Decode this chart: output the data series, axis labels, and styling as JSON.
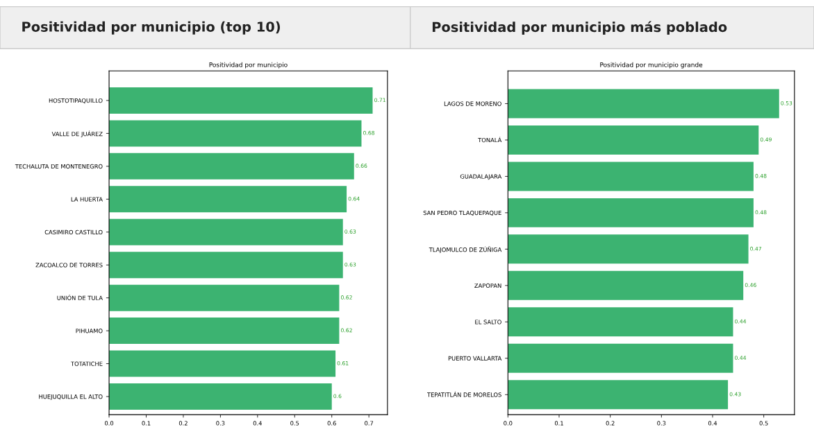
{
  "chart_data": [
    {
      "type": "bar",
      "orientation": "horizontal",
      "title": "Positividad por municipio (top 10)",
      "subtitle": "Positividad por municipio",
      "categories": [
        "HOSTOTIPAQUILLO",
        "VALLE DE JUÁREZ",
        "TECHALUTA DE MONTENEGRO",
        "LA HUERTA",
        "CASIMIRO CASTILLO",
        "ZACOALCO DE TORRES",
        "UNIÓN DE TULA",
        "PIHUAMO",
        "TOTATICHE",
        "HUEJUQUILLA EL ALTO"
      ],
      "values": [
        0.71,
        0.68,
        0.66,
        0.64,
        0.63,
        0.63,
        0.62,
        0.62,
        0.61,
        0.6
      ],
      "color": "#3cb371",
      "data_labels": true,
      "xlim": [
        0,
        0.75
      ],
      "xticks": [
        {
          "value": 0,
          "label": "0.0"
        },
        0.1,
        0.2,
        0.3,
        0.4,
        0.5,
        0.6,
        0.7
      ],
      "grid": false
    },
    {
      "type": "bar",
      "orientation": "horizontal",
      "title": "Positividad por municipio más poblado",
      "subtitle": "Positividad por municipio grande",
      "categories": [
        "LAGOS DE MORENO",
        "TONALÁ",
        "GUADALAJARA",
        "SAN PEDRO TLAQUEPAQUE",
        "TLAJOMULCO DE ZÚÑIGA",
        "ZAPOPAN",
        "EL SALTO",
        "PUERTO VALLARTA",
        "TEPATITLÁN DE MORELOS"
      ],
      "values": [
        0.53,
        0.49,
        0.48,
        0.48,
        0.47,
        0.46,
        0.44,
        0.44,
        0.43
      ],
      "color": "#3cb371",
      "data_labels": true,
      "xlim": [
        0,
        0.56
      ],
      "xticks": [
        {
          "value": 0,
          "label": "0.0"
        },
        0.1,
        0.2,
        0.3,
        0.4,
        0.5
      ],
      "grid": false
    }
  ]
}
